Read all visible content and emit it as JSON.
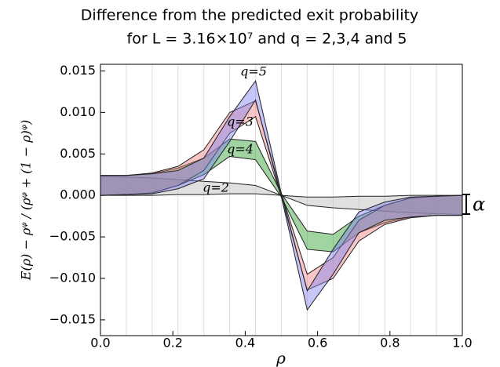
{
  "chart_data": {
    "type": "band",
    "title": [
      "Difference from the predicted exit probability",
      "for L = 3.16×10⁷  and  q = 2,3,4 and 5"
    ],
    "x_label": "ρ",
    "y_label": "E(ρ) − ρᵠ / (ρᵠ + (1 − ρ)ᵠ)",
    "annotation": "α",
    "x": [
      0,
      0.0714,
      0.1429,
      0.2143,
      0.2857,
      0.3571,
      0.4286,
      0.5,
      0.5714,
      0.6429,
      0.7143,
      0.7857,
      0.8571,
      0.9286,
      1.0
    ],
    "series": [
      {
        "name": "q=2",
        "color": "#bbbbbb",
        "upper": [
          0.0023,
          0.0022,
          0.0021,
          0.0019,
          0.0017,
          0.0015,
          0.0012,
          0.0,
          -0.0002,
          -0.0002,
          -0.0001,
          -0.0001,
          0,
          0,
          0
        ],
        "lower": [
          0,
          0,
          0,
          0.0001,
          0.0001,
          0.0002,
          0.0002,
          0.0,
          -0.0012,
          -0.0015,
          -0.0017,
          -0.0019,
          -0.0021,
          -0.0022,
          -0.0023
        ]
      },
      {
        "name": "q=3",
        "color": "#2ca02c",
        "upper": [
          0.0024,
          0.0024,
          0.0026,
          0.0033,
          0.0045,
          0.0068,
          0.0065,
          0.0002,
          -0.0043,
          -0.0047,
          -0.0025,
          -0.0012,
          -0.0003,
          -0.0001,
          0
        ],
        "lower": [
          0,
          0.0001,
          0.0003,
          0.0012,
          0.0025,
          0.0047,
          0.0043,
          -0.0002,
          -0.0065,
          -0.0068,
          -0.0045,
          -0.0033,
          -0.0026,
          -0.0024,
          -0.0024
        ]
      },
      {
        "name": "q=4",
        "color": "#f08080",
        "upper": [
          0.0024,
          0.0024,
          0.0027,
          0.0035,
          0.0055,
          0.01,
          0.0114,
          0.0002,
          -0.0095,
          -0.0075,
          -0.003,
          -0.0012,
          -0.0003,
          -0.0001,
          0
        ],
        "lower": [
          0,
          0.0001,
          0.0003,
          0.0012,
          0.003,
          0.0075,
          0.0095,
          -0.0002,
          -0.0114,
          -0.01,
          -0.0055,
          -0.0035,
          -0.0027,
          -0.0024,
          -0.0024
        ]
      },
      {
        "name": "q=5",
        "color": "#8080f0",
        "upper": [
          0.0024,
          0.0024,
          0.0026,
          0.003,
          0.0045,
          0.0095,
          0.0138,
          0.0002,
          -0.0115,
          -0.0065,
          -0.002,
          -0.0008,
          -0.0002,
          -0.0001,
          0
        ],
        "lower": [
          0,
          0.0001,
          0.0002,
          0.0008,
          0.002,
          0.0065,
          0.0115,
          -0.0002,
          -0.0138,
          -0.0095,
          -0.0045,
          -0.003,
          -0.0026,
          -0.0024,
          -0.0024
        ]
      }
    ],
    "xlim": [
      0,
      1.0
    ],
    "ylim": [
      -0.0169,
      0.0158
    ],
    "xticks": [
      {
        "value": 0,
        "label": "0.0"
      },
      0.2,
      0.4,
      0.6,
      0.8,
      {
        "value": 1.0,
        "label": "1.0"
      }
    ],
    "yticks": [
      {
        "value": -0.015,
        "label": "−0.015"
      },
      {
        "value": -0.01,
        "label": "−0.010"
      },
      {
        "value": -0.005,
        "label": "−0.005"
      },
      {
        "value": 0,
        "label": "0.000"
      },
      0.005,
      {
        "value": 0.01,
        "label": "0.010"
      },
      0.015
    ],
    "grid": "x-points"
  }
}
